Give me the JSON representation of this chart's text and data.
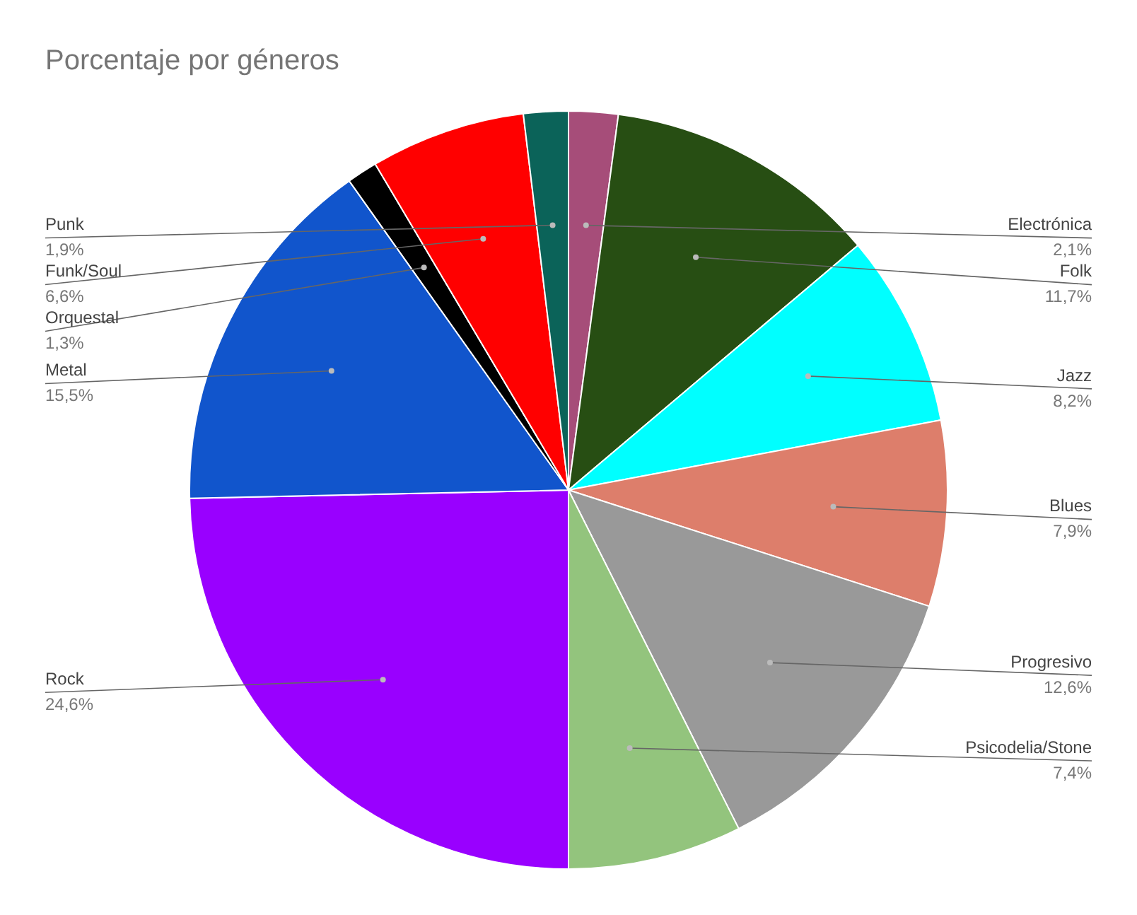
{
  "chart_data": {
    "type": "pie",
    "title": "Porcentaje por géneros",
    "categories": [
      "Electrónica",
      "Folk",
      "Jazz",
      "Blues",
      "Progresivo",
      "Psicodelia/Stone",
      "Rock",
      "Metal",
      "Orquestal",
      "Funk/Soul",
      "Punk"
    ],
    "values": [
      2.1,
      11.7,
      8.2,
      7.9,
      12.6,
      7.4,
      24.6,
      15.5,
      1.3,
      6.6,
      1.9
    ],
    "colors": [
      "#a64d79",
      "#274e13",
      "#00ffff",
      "#dd7e6b",
      "#999999",
      "#93c47d",
      "#9900ff",
      "#1155cc",
      "#000000",
      "#ff0000",
      "#0b6359"
    ],
    "value_labels": [
      "2,1%",
      "11,7%",
      "8,2%",
      "7,9%",
      "12,6%",
      "7,4%",
      "24,6%",
      "15,5%",
      "1,3%",
      "6,6%",
      "1,9%"
    ],
    "legend": false
  }
}
